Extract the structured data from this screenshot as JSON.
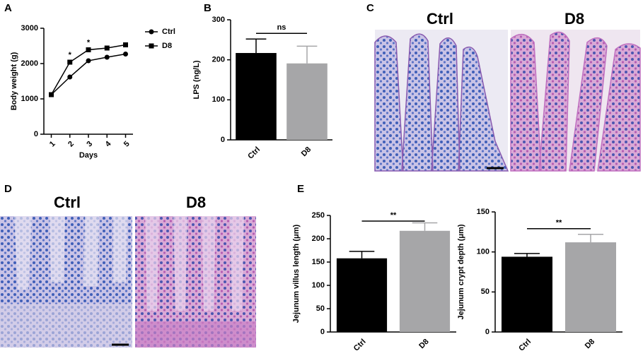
{
  "panel_labels": [
    "A",
    "B",
    "C",
    "D",
    "E"
  ],
  "images": {
    "C": [
      "Ctrl",
      "D8"
    ],
    "D": [
      "Ctrl",
      "D8"
    ]
  },
  "chart_data": [
    {
      "type": "line",
      "x": [
        1,
        2,
        3,
        4,
        5
      ],
      "xlim": [
        0.6,
        5.4
      ],
      "xticks": [
        1,
        2,
        3,
        4,
        5
      ],
      "xlabel": "Days",
      "ylabel": "Body weight (g)",
      "ylim": [
        0,
        3000
      ],
      "yticks": [
        0,
        1000,
        2000,
        3000
      ],
      "legend": "upper right",
      "series": [
        {
          "name": "Ctrl",
          "color": "#000000",
          "marker": "circle",
          "values": [
            1120,
            1620,
            2080,
            2180,
            2270
          ]
        },
        {
          "name": "D8",
          "color": "#000000",
          "marker": "square",
          "values": [
            1120,
            2040,
            2390,
            2440,
            2530
          ]
        }
      ],
      "annotations": [
        {
          "text": "*",
          "x": 2
        },
        {
          "text": "*",
          "x": 3
        }
      ]
    },
    {
      "type": "bar",
      "categories": [
        "Ctrl",
        "D8"
      ],
      "values": [
        217,
        191
      ],
      "errors": [
        35,
        43
      ],
      "colors": [
        "#000000",
        "#a6a6a8"
      ],
      "ylabel": "LPS (ng/L)",
      "ylim": [
        0,
        300
      ],
      "yticks": [
        0,
        100,
        200,
        300
      ],
      "annotation": "ns"
    },
    {
      "type": "bar",
      "categories": [
        "Ctrl",
        "D8"
      ],
      "values": [
        158,
        217
      ],
      "errors": [
        15,
        17
      ],
      "colors": [
        "#000000",
        "#a6a6a8"
      ],
      "ylabel": "Jejunum villus length (μm)",
      "ylim": [
        0,
        250
      ],
      "yticks": [
        0,
        50,
        100,
        150,
        200,
        250
      ],
      "annotation": "**"
    },
    {
      "type": "bar",
      "categories": [
        "Ctrl",
        "D8"
      ],
      "values": [
        94,
        112
      ],
      "errors": [
        4,
        10
      ],
      "colors": [
        "#000000",
        "#a6a6a8"
      ],
      "ylabel": "Jejunum crypt depth (μm)",
      "ylim": [
        0,
        150
      ],
      "yticks": [
        0,
        50,
        100,
        150
      ],
      "annotation": "**"
    }
  ]
}
